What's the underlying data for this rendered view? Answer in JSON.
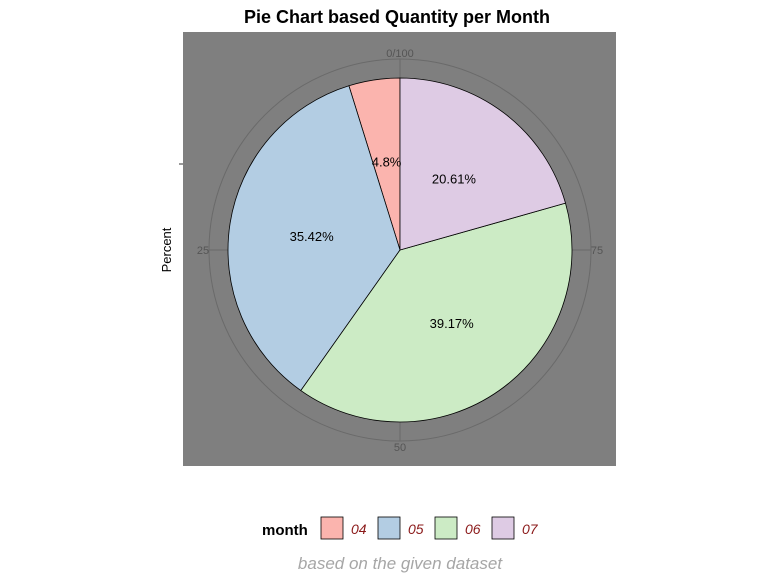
{
  "chart_data": {
    "type": "pie",
    "title": "Pie Chart based Quantity per Month",
    "ylabel": "Percent",
    "caption": "based on the given dataset",
    "legend_title": "month",
    "legend_position": "bottom",
    "categories": [
      "04",
      "05",
      "06",
      "07"
    ],
    "values": [
      4.8,
      35.42,
      39.17,
      20.61
    ],
    "labels": [
      "4.8%",
      "35.42%",
      "39.17%",
      "20.61%"
    ],
    "colors": [
      "#FBB4AE",
      "#B3CDE3",
      "#CCEBC5",
      "#DECBE4"
    ],
    "angular_ticks": [
      "0/100",
      "25",
      "50",
      "75"
    ],
    "angular_tick_values": [
      0,
      25,
      50,
      75
    ],
    "panel_background": "#7f7f7f",
    "grid_color": "#6a6a6a",
    "slice_order": "counter-clockwise from top"
  }
}
